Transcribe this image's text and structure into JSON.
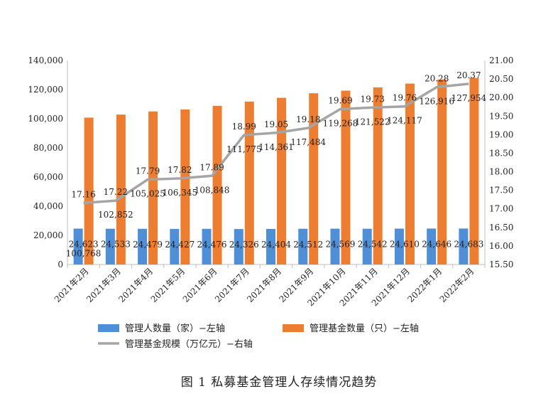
{
  "caption": "图 1  私募基金管理人存续情况趋势",
  "chart_data": {
    "type": "bar",
    "categories": [
      "2021年2月",
      "2021年3月",
      "2021年4月",
      "2021年5月",
      "2021年6月",
      "2021年7月",
      "2021年8月",
      "2021年9月",
      "2021年10月",
      "2021年11月",
      "2021年12月",
      "2022年1月",
      "2022年2月"
    ],
    "series": [
      {
        "name": "管理人数量（家）−左轴",
        "type": "bar",
        "axis": "left",
        "color": "#4f8fd8",
        "values": [
          24623,
          24533,
          24479,
          24427,
          24476,
          24326,
          24404,
          24512,
          24569,
          24542,
          24610,
          24646,
          24683
        ],
        "labels": [
          "24,623",
          "24,533",
          "24,479",
          "24,427",
          "24,476",
          "24,326",
          "24,404",
          "24,512",
          "24,569",
          "24,542",
          "24,610",
          "24,646",
          "24,683"
        ]
      },
      {
        "name": "管理基金数量（只）−左轴",
        "type": "bar",
        "axis": "left",
        "color": "#ed7d31",
        "values": [
          100768,
          102852,
          105025,
          106345,
          108848,
          111775,
          114361,
          117484,
          119268,
          121522,
          124117,
          126916,
          127954
        ],
        "labels": [
          "100,768",
          "102,852",
          "105,025",
          "106,345",
          "108,848",
          "111,775",
          "114,361",
          "117,484",
          "119,268",
          "121,522",
          "124,117",
          "126,916",
          "127,954"
        ]
      },
      {
        "name": "管理基金规模（万亿元）−右轴",
        "type": "line",
        "axis": "right",
        "color": "#a5a5a5",
        "values": [
          17.16,
          17.22,
          17.79,
          17.82,
          17.89,
          18.99,
          19.05,
          19.18,
          19.69,
          19.73,
          19.76,
          20.28,
          20.37
        ],
        "labels": [
          "17.16",
          "17.22",
          "17.79",
          "17.82",
          "17.89",
          "18.99",
          "19.05",
          "19.18",
          "19.69",
          "19.73",
          "19.76",
          "20.28",
          "20.37"
        ]
      }
    ],
    "y_left": {
      "range": [
        0,
        140000
      ],
      "ticks": [
        "0",
        "20,000",
        "40,000",
        "60,000",
        "80,000",
        "100,000",
        "120,000",
        "140,000"
      ]
    },
    "y_right": {
      "range": [
        15.5,
        21.0
      ],
      "ticks": [
        "15.50",
        "16.00",
        "16.50",
        "17.00",
        "17.50",
        "18.00",
        "18.50",
        "19.00",
        "19.50",
        "20.00",
        "20.50",
        "21.00"
      ]
    },
    "grid": false,
    "legend_position": "bottom"
  }
}
